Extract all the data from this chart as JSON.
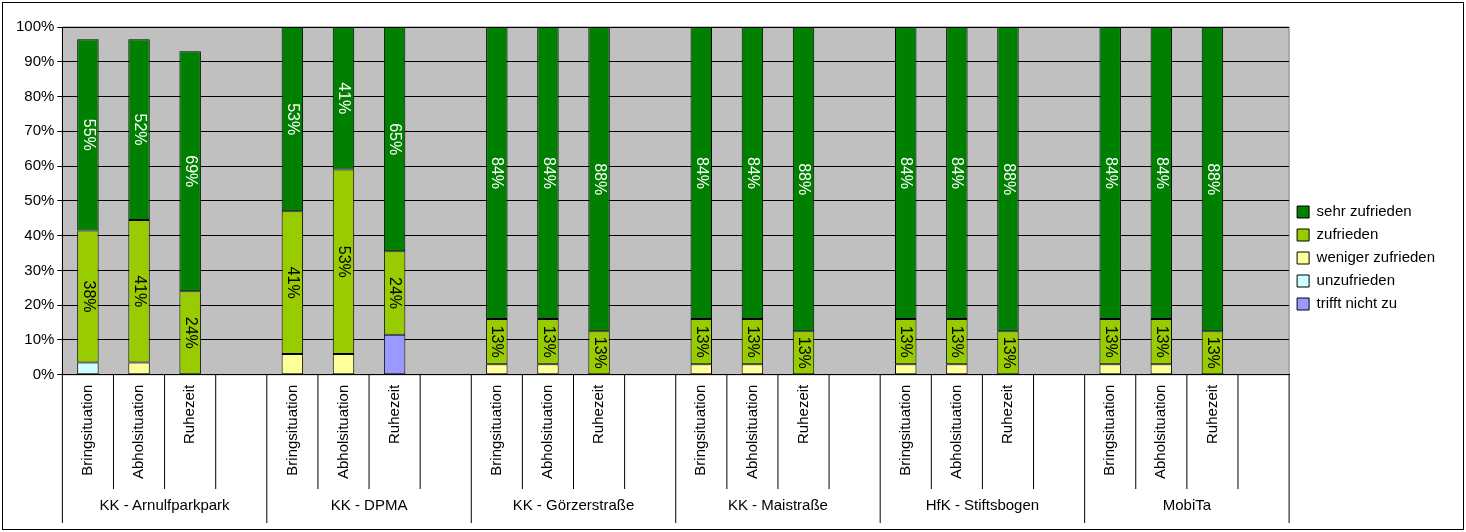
{
  "chart_data": {
    "type": "bar",
    "stacked": true,
    "categories": [
      "Bringsituation",
      "Abholsituation",
      "Ruhezeit",
      null,
      "Bringsituation",
      "Abholsituation",
      "Ruhezeit",
      null,
      "Bringsituation",
      "Abholsituation",
      "Ruhezeit",
      null,
      "Bringsituation",
      "Abholsituation",
      "Ruhezeit",
      null,
      "Bringsituation",
      "Abholsituation",
      "Ruhezeit",
      null,
      "Bringsituation",
      "Abholsituation",
      "Ruhezeit",
      null
    ],
    "series": [
      {
        "name": "trifft nicht zu",
        "color": "#9999ff",
        "values": [
          null,
          null,
          null,
          null,
          null,
          null,
          11.5,
          null,
          null,
          null,
          null,
          null,
          null,
          null,
          null,
          null,
          null,
          null,
          null,
          null,
          null,
          null,
          null,
          null
        ]
      },
      {
        "name": "unzufrieden",
        "color": "#ccffff",
        "values": [
          3.5,
          null,
          null,
          null,
          null,
          null,
          null,
          null,
          null,
          null,
          null,
          null,
          null,
          null,
          null,
          null,
          null,
          null,
          null,
          null,
          null,
          null,
          null,
          null
        ]
      },
      {
        "name": "weniger zufrieden",
        "color": "#ffff99",
        "values": [
          null,
          3.5,
          null,
          null,
          6,
          6,
          null,
          null,
          3,
          3,
          null,
          null,
          3,
          3,
          null,
          null,
          3,
          3,
          null,
          null,
          3,
          3,
          null,
          null
        ]
      },
      {
        "name": "zufrieden",
        "color": "#99cc00",
        "values": [
          38,
          41,
          24,
          null,
          41,
          53,
          24,
          null,
          13,
          13,
          12.5,
          null,
          13,
          13,
          12.5,
          null,
          13,
          13,
          12.5,
          null,
          13,
          13,
          12.5,
          null
        ],
        "value_labels": [
          "38%",
          "41%",
          "24%",
          null,
          "41%",
          "53%",
          "24%",
          null,
          "13%",
          "13%",
          "13%",
          null,
          "13%",
          "13%",
          "13%",
          null,
          "13%",
          "13%",
          "13%",
          null,
          "13%",
          "13%",
          "13%",
          null
        ]
      },
      {
        "name": "sehr zufrieden",
        "color": "#008000",
        "values": [
          55,
          52,
          69,
          null,
          53,
          41,
          64.5,
          null,
          84,
          84,
          87.5,
          null,
          84,
          84,
          87.5,
          null,
          84,
          84,
          87.5,
          null,
          84,
          84,
          87.5,
          null
        ],
        "value_labels": [
          "55%",
          "52%",
          "69%",
          null,
          "53%",
          "41%",
          "65%",
          null,
          "84%",
          "84%",
          "88%",
          null,
          "84%",
          "84%",
          "88%",
          null,
          "84%",
          "84%",
          "88%",
          null,
          "84%",
          "84%",
          "88%",
          null
        ]
      }
    ],
    "ylim": [
      0,
      100
    ],
    "yticks": [
      {
        "value": 0,
        "label": "0%"
      },
      {
        "value": 10,
        "label": "10%"
      },
      {
        "value": 20,
        "label": "20%"
      },
      {
        "value": 30,
        "label": "30%"
      },
      {
        "value": 40,
        "label": "40%"
      },
      {
        "value": 50,
        "label": "50%"
      },
      {
        "value": 60,
        "label": "60%"
      },
      {
        "value": 70,
        "label": "70%"
      },
      {
        "value": 80,
        "label": "80%"
      },
      {
        "value": 90,
        "label": "90%"
      },
      {
        "value": 100,
        "label": "100%"
      }
    ],
    "grid": "y",
    "legend": "right",
    "annotations": [
      "KK - Arnulfparkpark",
      "KK - DPMA",
      "KK - Görzerstraße",
      "KK - Maistraße",
      "HfK - Stiftsbogen",
      "MobiTa"
    ]
  }
}
